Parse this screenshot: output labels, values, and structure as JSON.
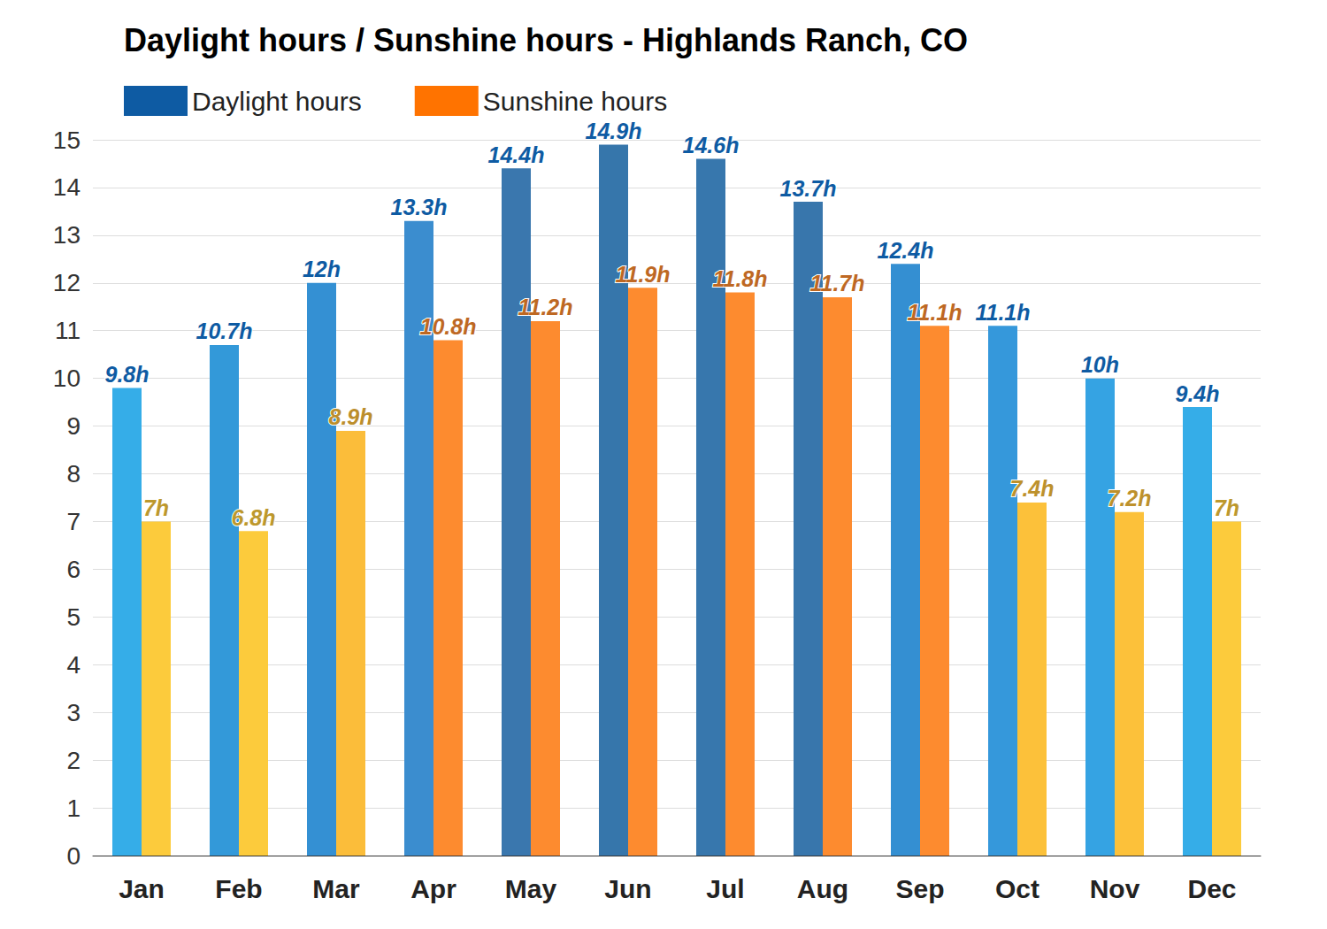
{
  "chart_data": {
    "type": "bar",
    "title": "Daylight hours / Sunshine hours - Highlands Ranch, CO",
    "categories": [
      "Jan",
      "Feb",
      "Mar",
      "Apr",
      "May",
      "Jun",
      "Jul",
      "Aug",
      "Sep",
      "Oct",
      "Nov",
      "Dec"
    ],
    "series": [
      {
        "name": "Daylight hours",
        "color": "#0e5ba3",
        "colors": [
          "#35ade8",
          "#3399d9",
          "#3490d3",
          "#3b8dcf",
          "#3a77ae",
          "#3676ab",
          "#3777ad",
          "#3876ac",
          "#348fd2",
          "#3598db",
          "#35a3e3",
          "#35ade8"
        ],
        "values": [
          9.8,
          10.7,
          12,
          13.3,
          14.4,
          14.9,
          14.6,
          13.7,
          12.4,
          11.1,
          10,
          9.4
        ],
        "value_labels": [
          "9.8h",
          "10.7h",
          "12h",
          "13.3h",
          "14.4h",
          "14.9h",
          "14.6h",
          "13.7h",
          "12.4h",
          "11.1h",
          "10h",
          "9.4h"
        ]
      },
      {
        "name": "Sunshine hours",
        "color": "#ff7300",
        "colors": [
          "#fccb3c",
          "#fccb3c",
          "#fbbd3a",
          "#fd8b2f",
          "#fd8b2f",
          "#fd8b2f",
          "#fd8b2f",
          "#fd8b2f",
          "#fd8b2f",
          "#fcc13a",
          "#fcc13a",
          "#fccb3c"
        ],
        "values": [
          7,
          6.8,
          8.9,
          10.8,
          11.2,
          11.9,
          11.8,
          11.7,
          11.1,
          7.4,
          7.2,
          7
        ],
        "value_labels": [
          "7h",
          "6.8h",
          "8.9h",
          "10.8h",
          "11.2h",
          "11.9h",
          "11.8h",
          "11.7h",
          "11.1h",
          "7.4h",
          "7.2h",
          "7h"
        ]
      }
    ],
    "ylim": [
      0,
      15
    ],
    "yticks": [
      0,
      1,
      2,
      3,
      4,
      5,
      6,
      7,
      8,
      9,
      10,
      11,
      12,
      13,
      14,
      15
    ],
    "grid": true,
    "legend": "top-left",
    "data_labels": true
  }
}
